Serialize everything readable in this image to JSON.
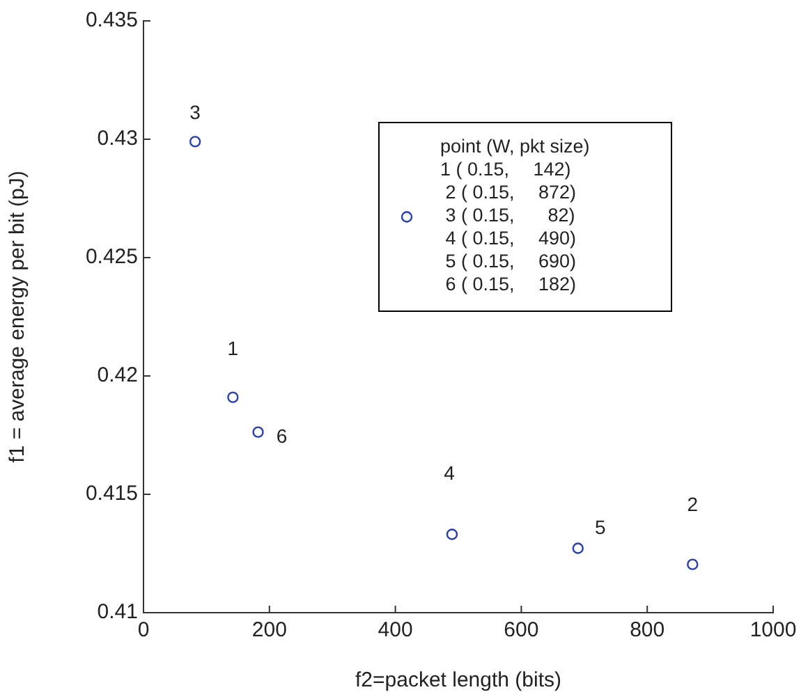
{
  "chart_data": {
    "type": "scatter",
    "xlabel": "f2=packet length (bits)",
    "ylabel": "f1 = average energy per bit (pJ)",
    "xlim": [
      0,
      1000
    ],
    "xticks": [
      0,
      200,
      400,
      600,
      800,
      1000
    ],
    "ylim": [
      0.41,
      0.435
    ],
    "yticks": [
      0.41,
      0.415,
      0.42,
      0.425,
      0.43,
      0.435
    ],
    "series": [
      {
        "name": "point (W, pkt size)\n1 ( 0.15,   142)\n 2 ( 0.15,   872)\n 3 ( 0.15,    82)\n 4 ( 0.15,   490)\n 5 ( 0.15,   690)\n 6 ( 0.15,   182)",
        "color": "#2b3fa8",
        "x": [
          142,
          872,
          82,
          490,
          690,
          182
        ],
        "values": [
          0.4191,
          0.41204,
          0.4299,
          0.41331,
          0.41272,
          0.41763
        ]
      }
    ],
    "annotations": [
      {
        "text": "1",
        "x": 142,
        "y": 0.4191
      },
      {
        "text": "2",
        "x": 872,
        "y": 0.41204
      },
      {
        "text": "3",
        "x": 82,
        "y": 0.4299
      },
      {
        "text": "4",
        "x": 490,
        "y": 0.41331
      },
      {
        "text": "5",
        "x": 690,
        "y": 0.41272
      },
      {
        "text": "6",
        "x": 182,
        "y": 0.41763
      }
    ],
    "marker": "circle",
    "grid": false,
    "legend": "top right"
  }
}
